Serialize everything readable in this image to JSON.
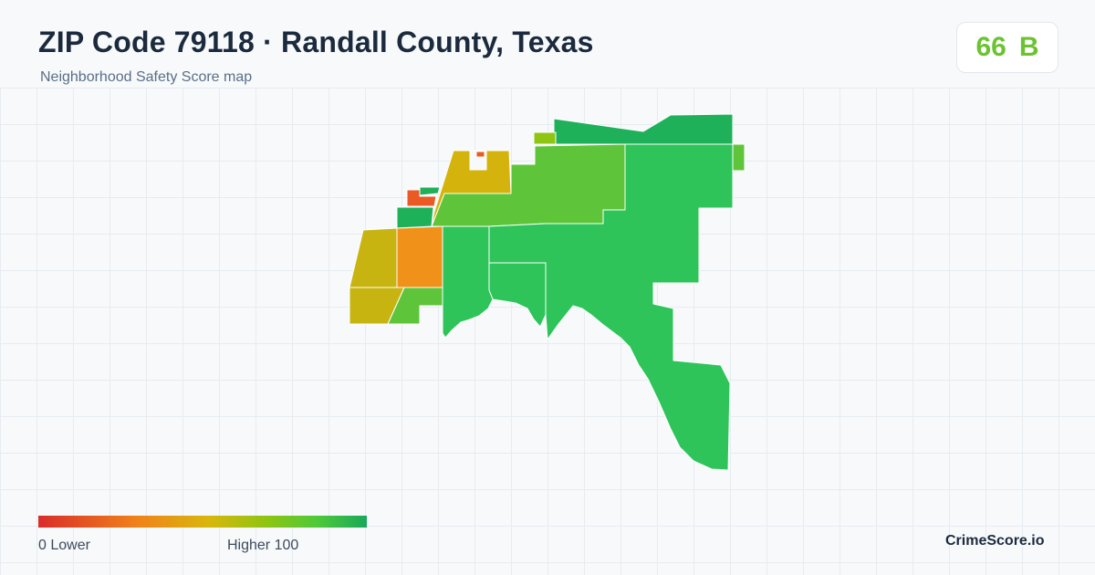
{
  "header": {
    "title": "ZIP Code 79118 · Randall County, Texas",
    "subtitle": "Neighborhood Safety Score map"
  },
  "score": {
    "value": "66",
    "grade": "B",
    "color": "#6cc332"
  },
  "legend": {
    "low_text": "0  Lower",
    "high_text": "Higher  100",
    "min": 0,
    "max": 100,
    "colors": [
      "#d92d2a",
      "#f0821a",
      "#d8b70c",
      "#8cc511",
      "#4ec93a",
      "#1aa85a"
    ]
  },
  "map": {
    "region_colors": {
      "lowest": "#ea5a24",
      "low": "#f0921a",
      "mid_low": "#d4b40c",
      "mid_low_olive": "#c8b411",
      "mid": "#8ec511",
      "mid_high": "#5ec53a",
      "high": "#2ec45a",
      "highest": "#1fb15a"
    }
  },
  "brand": "CrimeScore.io"
}
